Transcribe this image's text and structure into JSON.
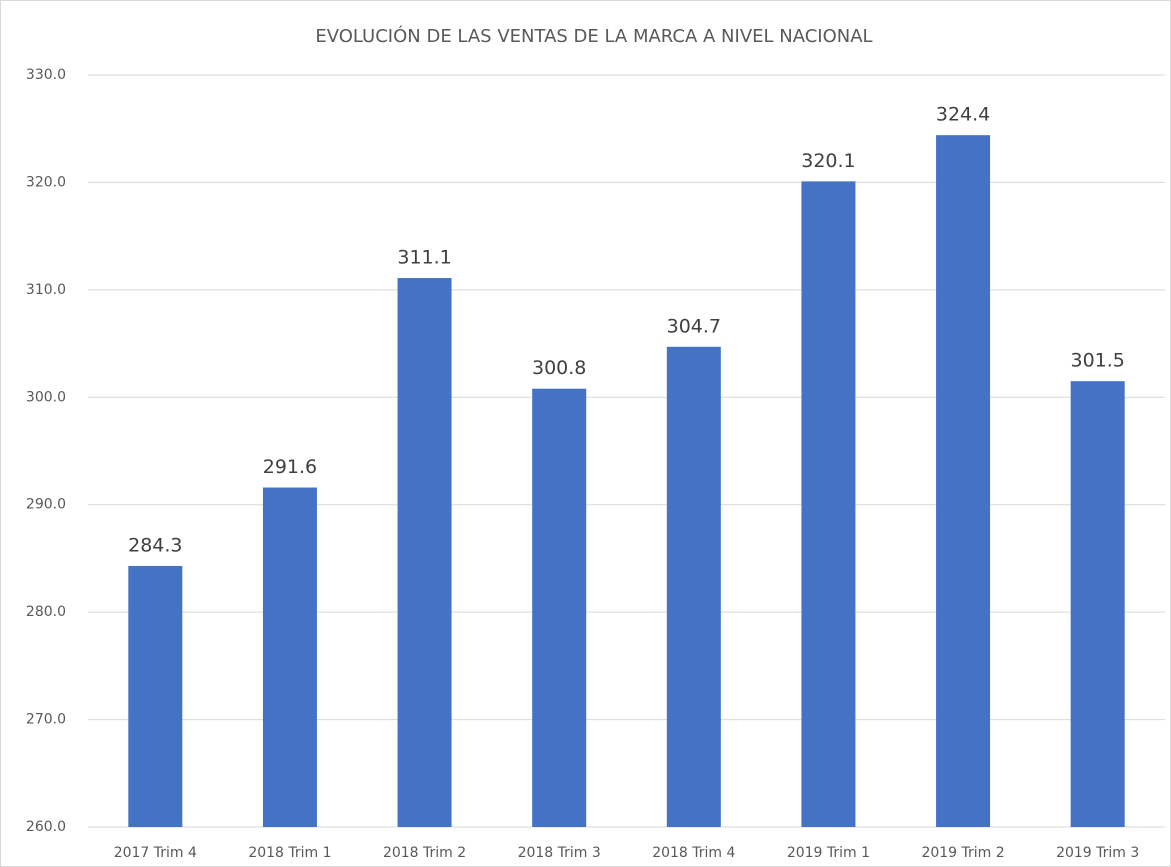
{
  "chart_data": {
    "type": "bar",
    "title": "EVOLUCIÓN DE LAS VENTAS DE LA MARCA A NIVEL NACIONAL",
    "categories": [
      "2017 Trim 4",
      "2018 Trim 1",
      "2018 Trim 2",
      "2018 Trim 3",
      "2018 Trim 4",
      "2019 Trim 1",
      "2019 Trim 2",
      "2019 Trim 3"
    ],
    "values": [
      284.3,
      291.6,
      311.1,
      300.8,
      304.7,
      320.1,
      324.4,
      301.5
    ],
    "color": "#4472c4",
    "ylim": [
      260,
      330
    ],
    "yticks": [
      {
        "value": 260,
        "label": "260.0"
      },
      {
        "value": 270,
        "label": "270.0"
      },
      {
        "value": 280,
        "label": "280.0"
      },
      {
        "value": 290,
        "label": "290.0"
      },
      {
        "value": 300,
        "label": "300.0"
      },
      {
        "value": 310,
        "label": "310.0"
      },
      {
        "value": 320,
        "label": "320.0"
      },
      {
        "value": 330,
        "label": "330.0"
      }
    ],
    "grid": true
  }
}
